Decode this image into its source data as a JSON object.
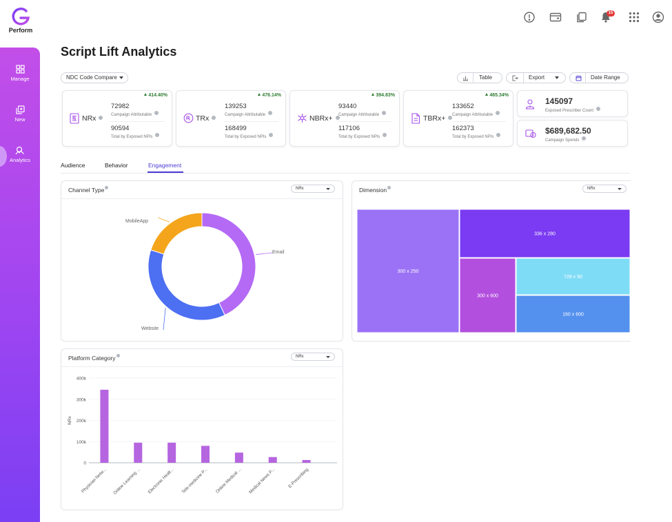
{
  "app": {
    "name": "Perform"
  },
  "sidebar": {
    "items": [
      {
        "label": "Manage",
        "icon": "grid-icon"
      },
      {
        "label": "New",
        "icon": "copy-plus-icon"
      },
      {
        "label": "Analytics",
        "icon": "analytics-icon",
        "active": true
      }
    ]
  },
  "topbar": {
    "notification_count": "15"
  },
  "page": {
    "title": "Script Lift Analytics"
  },
  "toolbar": {
    "compare_label": "NDC Code Compare",
    "table_label": "Table",
    "export_label": "Export",
    "date_range_label": "Date Range"
  },
  "kpis": [
    {
      "name": "NRx",
      "change": "414.40%",
      "attributable": "72982",
      "attributable_label": "Campaign Attributable",
      "total": "90594",
      "total_label": "Total by Exposed NPIs"
    },
    {
      "name": "TRx",
      "change": "476.14%",
      "attributable": "139253",
      "attributable_label": "Campaign Attributable",
      "total": "168499",
      "total_label": "Total by Exposed NPIs"
    },
    {
      "name": "NBRx+",
      "change": "394.83%",
      "attributable": "93440",
      "attributable_label": "Campaign Attributable",
      "total": "117106",
      "total_label": "Total by Exposed NPIs"
    },
    {
      "name": "TBRx+",
      "change": "465.34%",
      "attributable": "133652",
      "attributable_label": "Campaign Attributable",
      "total": "162373",
      "total_label": "Total by Exposed NPIs"
    }
  ],
  "stats": [
    {
      "value": "145097",
      "label": "Exposed Prescriber Count"
    },
    {
      "value": "$689,682.50",
      "label": "Campaign Spends"
    }
  ],
  "tabs": [
    "Audience",
    "Behavior",
    "Engagement"
  ],
  "active_tab": "Engagement",
  "colors": {
    "accent": "#4b3bd6",
    "positive": "#2e7d32",
    "purple_bar": "#b565e0"
  },
  "channel_panel": {
    "title": "Channel Type",
    "select": "NRx"
  },
  "dimension_panel": {
    "title": "Dimension",
    "select": "NRx"
  },
  "platform_panel": {
    "title": "Platform Category",
    "select": "NRx"
  },
  "chart_data": [
    {
      "type": "pie",
      "title": "Channel Type",
      "style": "donut",
      "slices": [
        {
          "label": "Email",
          "value": 43,
          "color": "#b46af5"
        },
        {
          "label": "Website",
          "value": 37,
          "color": "#4d6ff2"
        },
        {
          "label": "MobileApp",
          "value": 20,
          "color": "#f4a51c"
        }
      ]
    },
    {
      "type": "heatmap",
      "title": "Dimension",
      "style": "treemap",
      "cells": [
        {
          "label": "300 x 250",
          "color": "#9b72f6"
        },
        {
          "label": "336 x 280",
          "color": "#7a3bf2"
        },
        {
          "label": "300 x 600",
          "color": "#b34fde"
        },
        {
          "label": "728 x 90",
          "color": "#7fdcf6"
        },
        {
          "label": "160 x 600",
          "color": "#5490ed"
        }
      ]
    },
    {
      "type": "bar",
      "title": "Platform Category",
      "ylabel": "NRx",
      "ylim": [
        0,
        400000
      ],
      "yticks": [
        "0",
        "100k",
        "200k",
        "300k",
        "400k"
      ],
      "categories": [
        "Physician Netw...",
        "Online Learning ...",
        "Electronic Healt...",
        "Tele-medicine P...",
        "Online Medical ...",
        "Medical News P...",
        "E-Prescribing"
      ],
      "values": [
        345000,
        95000,
        95000,
        80000,
        48000,
        27000,
        13000
      ],
      "color": "#b565e0"
    }
  ]
}
